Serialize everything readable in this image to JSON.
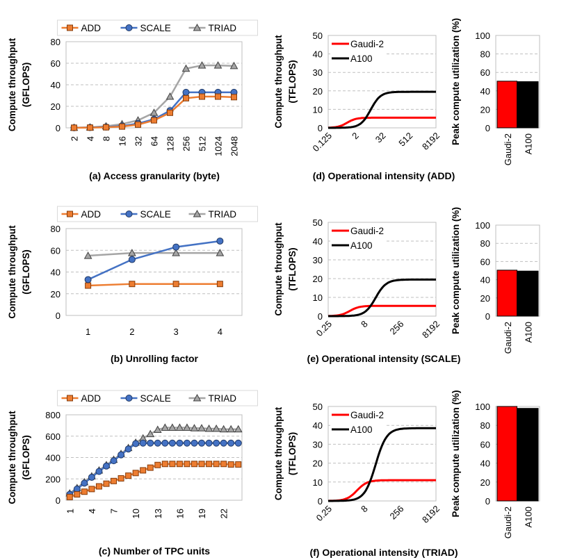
{
  "chart_data": [
    {
      "id": "a",
      "type": "line",
      "caption": "(a) Access granularity (byte)",
      "ylabel": "Compute throughput (GFLOPS)",
      "ylim": [
        0,
        80
      ],
      "yticks": [
        0,
        20,
        40,
        60,
        80
      ],
      "x": [
        "2",
        "4",
        "8",
        "16",
        "32",
        "64",
        "128",
        "256",
        "512",
        "1024",
        "2048"
      ],
      "series": [
        {
          "name": "ADD",
          "color": "#ed7d31",
          "marker": "square",
          "values": [
            0.1,
            0.2,
            0.5,
            1.2,
            3,
            7,
            14,
            27.5,
            29,
            29,
            28.5
          ]
        },
        {
          "name": "SCALE",
          "color": "#4472c4",
          "marker": "circle",
          "values": [
            0.1,
            0.3,
            0.8,
            1.8,
            4,
            8,
            16,
            33,
            33,
            33,
            33
          ]
        },
        {
          "name": "TRIAD",
          "color": "#a5a5a5",
          "marker": "triangle",
          "values": [
            0.2,
            0.5,
            1.5,
            3.5,
            7,
            14,
            29,
            55,
            58,
            58,
            57.5
          ]
        }
      ],
      "grid": true,
      "legend": "top"
    },
    {
      "id": "b",
      "type": "line",
      "caption": "(b) Unrolling factor",
      "ylabel": "Compute throughput (GFLOPS)",
      "ylim": [
        0,
        80
      ],
      "yticks": [
        0,
        20,
        40,
        60,
        80
      ],
      "x": [
        "1",
        "2",
        "3",
        "4"
      ],
      "series": [
        {
          "name": "ADD",
          "color": "#ed7d31",
          "marker": "square",
          "values": [
            27.5,
            29,
            29,
            29
          ]
        },
        {
          "name": "SCALE",
          "color": "#4472c4",
          "marker": "circle",
          "values": [
            33,
            51.5,
            63,
            68.5
          ]
        },
        {
          "name": "TRIAD",
          "color": "#a5a5a5",
          "marker": "triangle",
          "values": [
            55,
            57.5,
            57.5,
            57.5
          ]
        }
      ],
      "grid": true,
      "legend": "top"
    },
    {
      "id": "c",
      "type": "line",
      "caption": "(c) Number of TPC units",
      "ylabel": "Compute throughput (GFLOPS)",
      "ylim": [
        0,
        800
      ],
      "yticks": [
        0,
        200,
        400,
        600,
        800
      ],
      "x": [
        "1",
        "2",
        "3",
        "4",
        "5",
        "6",
        "7",
        "8",
        "9",
        "10",
        "11",
        "12",
        "13",
        "14",
        "15",
        "16",
        "17",
        "18",
        "19",
        "20",
        "21",
        "22",
        "23",
        "24"
      ],
      "xtick_labels": [
        "1",
        "4",
        "7",
        "10",
        "13",
        "16",
        "19",
        "22"
      ],
      "series": [
        {
          "name": "ADD",
          "color": "#ed7d31",
          "marker": "square",
          "values": [
            30,
            55,
            80,
            105,
            130,
            155,
            180,
            205,
            230,
            255,
            280,
            305,
            330,
            340,
            340,
            340,
            340,
            340,
            340,
            340,
            340,
            340,
            335,
            335
          ]
        },
        {
          "name": "SCALE",
          "color": "#4472c4",
          "marker": "circle",
          "values": [
            55,
            105,
            160,
            215,
            270,
            320,
            370,
            425,
            480,
            530,
            535,
            535,
            535,
            535,
            535,
            535,
            535,
            535,
            535,
            535,
            535,
            535,
            535,
            535
          ]
        },
        {
          "name": "TRIAD",
          "color": "#a5a5a5",
          "marker": "triangle",
          "values": [
            65,
            115,
            170,
            225,
            280,
            330,
            380,
            435,
            490,
            540,
            580,
            620,
            660,
            680,
            680,
            680,
            680,
            675,
            675,
            670,
            670,
            665,
            665,
            665
          ]
        }
      ],
      "grid": true,
      "legend": "top"
    },
    {
      "id": "d",
      "type": "line",
      "caption": "(d) Operational intensity  (ADD)",
      "ylabel": "Compute throughput (TFLOPS)",
      "ylim": [
        0,
        50
      ],
      "yticks": [
        0,
        10,
        20,
        30,
        40,
        50
      ],
      "x_log2_range": [
        -3,
        13
      ],
      "xtick_labels": [
        "0.125",
        "2",
        "32",
        "512",
        "8192"
      ],
      "series": [
        {
          "name": "Gaudi-2",
          "color": "#ff0000",
          "peak": 5.5,
          "x50_log2": -0.2,
          "slope": 1.5
        },
        {
          "name": "A100",
          "color": "#000000",
          "peak": 19.5,
          "x50_log2": 3.3,
          "slope": 1.35
        }
      ],
      "grid": true,
      "legend": "top-left"
    },
    {
      "id": "e",
      "type": "line",
      "caption": "(e) Operational intensity (SCALE)",
      "ylabel": "Compute throughput (TFLOPS)",
      "ylim": [
        0,
        50
      ],
      "yticks": [
        0,
        10,
        20,
        30,
        40,
        50
      ],
      "x_log2_range": [
        -2,
        13
      ],
      "xtick_labels": [
        "0.25",
        "8",
        "256",
        "8192"
      ],
      "series": [
        {
          "name": "Gaudi-2",
          "color": "#ff0000",
          "peak": 5.5,
          "x50_log2": 1.0,
          "slope": 1.5
        },
        {
          "name": "A100",
          "color": "#000000",
          "peak": 19.5,
          "x50_log2": 4.6,
          "slope": 1.35
        }
      ],
      "grid": true,
      "legend": "top-left"
    },
    {
      "id": "f",
      "type": "line",
      "caption": "(f) Operational intensity  (TRIAD)",
      "ylabel": "Compute throughput (TFLOPS)",
      "ylim": [
        0,
        50
      ],
      "yticks": [
        0,
        10,
        20,
        30,
        40,
        50
      ],
      "x_log2_range": [
        -2,
        13
      ],
      "xtick_labels": [
        "0.25",
        "8",
        "256",
        "8192"
      ],
      "series": [
        {
          "name": "Gaudi-2",
          "color": "#ff0000",
          "peak": 11,
          "x50_log2": 2.0,
          "slope": 1.4
        },
        {
          "name": "A100",
          "color": "#000000",
          "peak": 38.5,
          "x50_log2": 4.6,
          "slope": 1.3
        }
      ],
      "grid": true,
      "legend": "top-left"
    },
    {
      "id": "d-bar",
      "type": "bar",
      "ylabel": "Peak compute utilization (%)",
      "ylim": [
        0,
        100
      ],
      "yticks": [
        0,
        20,
        40,
        60,
        80,
        100
      ],
      "categories": [
        "Gaudi-2",
        "A100"
      ],
      "values": [
        50.5,
        50
      ],
      "colors": [
        "#ff0000",
        "#000000"
      ],
      "grid": true
    },
    {
      "id": "e-bar",
      "type": "bar",
      "ylabel": "Peak compute utilization (%)",
      "ylim": [
        0,
        100
      ],
      "yticks": [
        0,
        20,
        40,
        60,
        80,
        100
      ],
      "categories": [
        "Gaudi-2",
        "A100"
      ],
      "values": [
        50.5,
        49.5
      ],
      "colors": [
        "#ff0000",
        "#000000"
      ],
      "grid": true
    },
    {
      "id": "f-bar",
      "type": "bar",
      "ylabel": "Peak compute utilization (%)",
      "ylim": [
        0,
        100
      ],
      "yticks": [
        0,
        20,
        40,
        60,
        80,
        100
      ],
      "categories": [
        "Gaudi-2",
        "A100"
      ],
      "values": [
        100,
        98
      ],
      "colors": [
        "#ff0000",
        "#000000"
      ],
      "grid": true
    }
  ]
}
